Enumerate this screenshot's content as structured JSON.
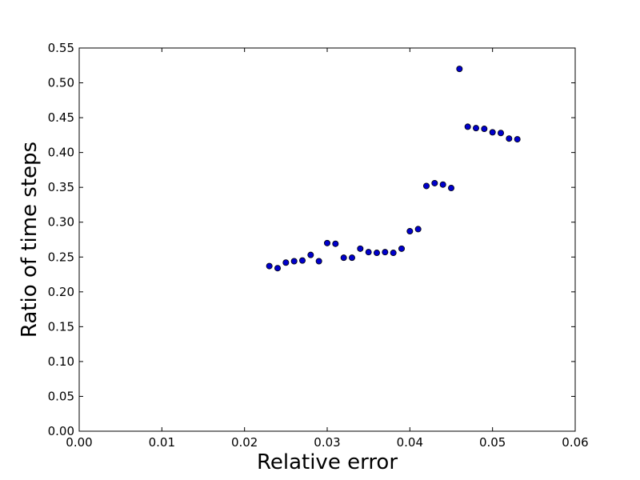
{
  "chart_data": {
    "type": "scatter",
    "title": "",
    "xlabel": "Relative error",
    "ylabel": "Ratio of time steps",
    "xlim": [
      0.0,
      0.06
    ],
    "ylim": [
      0.0,
      0.55
    ],
    "xticks": [
      0.0,
      0.01,
      0.02,
      0.03,
      0.04,
      0.05,
      0.06
    ],
    "xtick_labels": [
      "0.00",
      "0.01",
      "0.02",
      "0.03",
      "0.04",
      "0.05",
      "0.06"
    ],
    "yticks": [
      0.0,
      0.05,
      0.1,
      0.15,
      0.2,
      0.25,
      0.3,
      0.35,
      0.4,
      0.45,
      0.5,
      0.55
    ],
    "ytick_labels": [
      "0.00",
      "0.05",
      "0.10",
      "0.15",
      "0.20",
      "0.25",
      "0.30",
      "0.35",
      "0.40",
      "0.45",
      "0.50",
      "0.55"
    ],
    "grid": false,
    "legend": "none",
    "marker_color": "#0000cc",
    "marker_edge": "#000000",
    "series": [
      {
        "x": [
          0.023,
          0.024,
          0.025,
          0.026,
          0.027,
          0.028,
          0.029,
          0.03,
          0.031,
          0.032,
          0.033,
          0.034,
          0.035,
          0.036,
          0.037,
          0.038,
          0.039,
          0.04,
          0.041,
          0.042,
          0.043,
          0.044,
          0.045,
          0.046,
          0.047,
          0.048,
          0.049,
          0.05,
          0.051,
          0.052,
          0.053
        ],
        "y": [
          0.237,
          0.234,
          0.242,
          0.244,
          0.245,
          0.253,
          0.244,
          0.27,
          0.269,
          0.249,
          0.249,
          0.262,
          0.257,
          0.256,
          0.257,
          0.256,
          0.262,
          0.287,
          0.29,
          0.352,
          0.356,
          0.354,
          0.349,
          0.52,
          0.437,
          0.435,
          0.434,
          0.429,
          0.428,
          0.42,
          0.419
        ]
      }
    ]
  }
}
